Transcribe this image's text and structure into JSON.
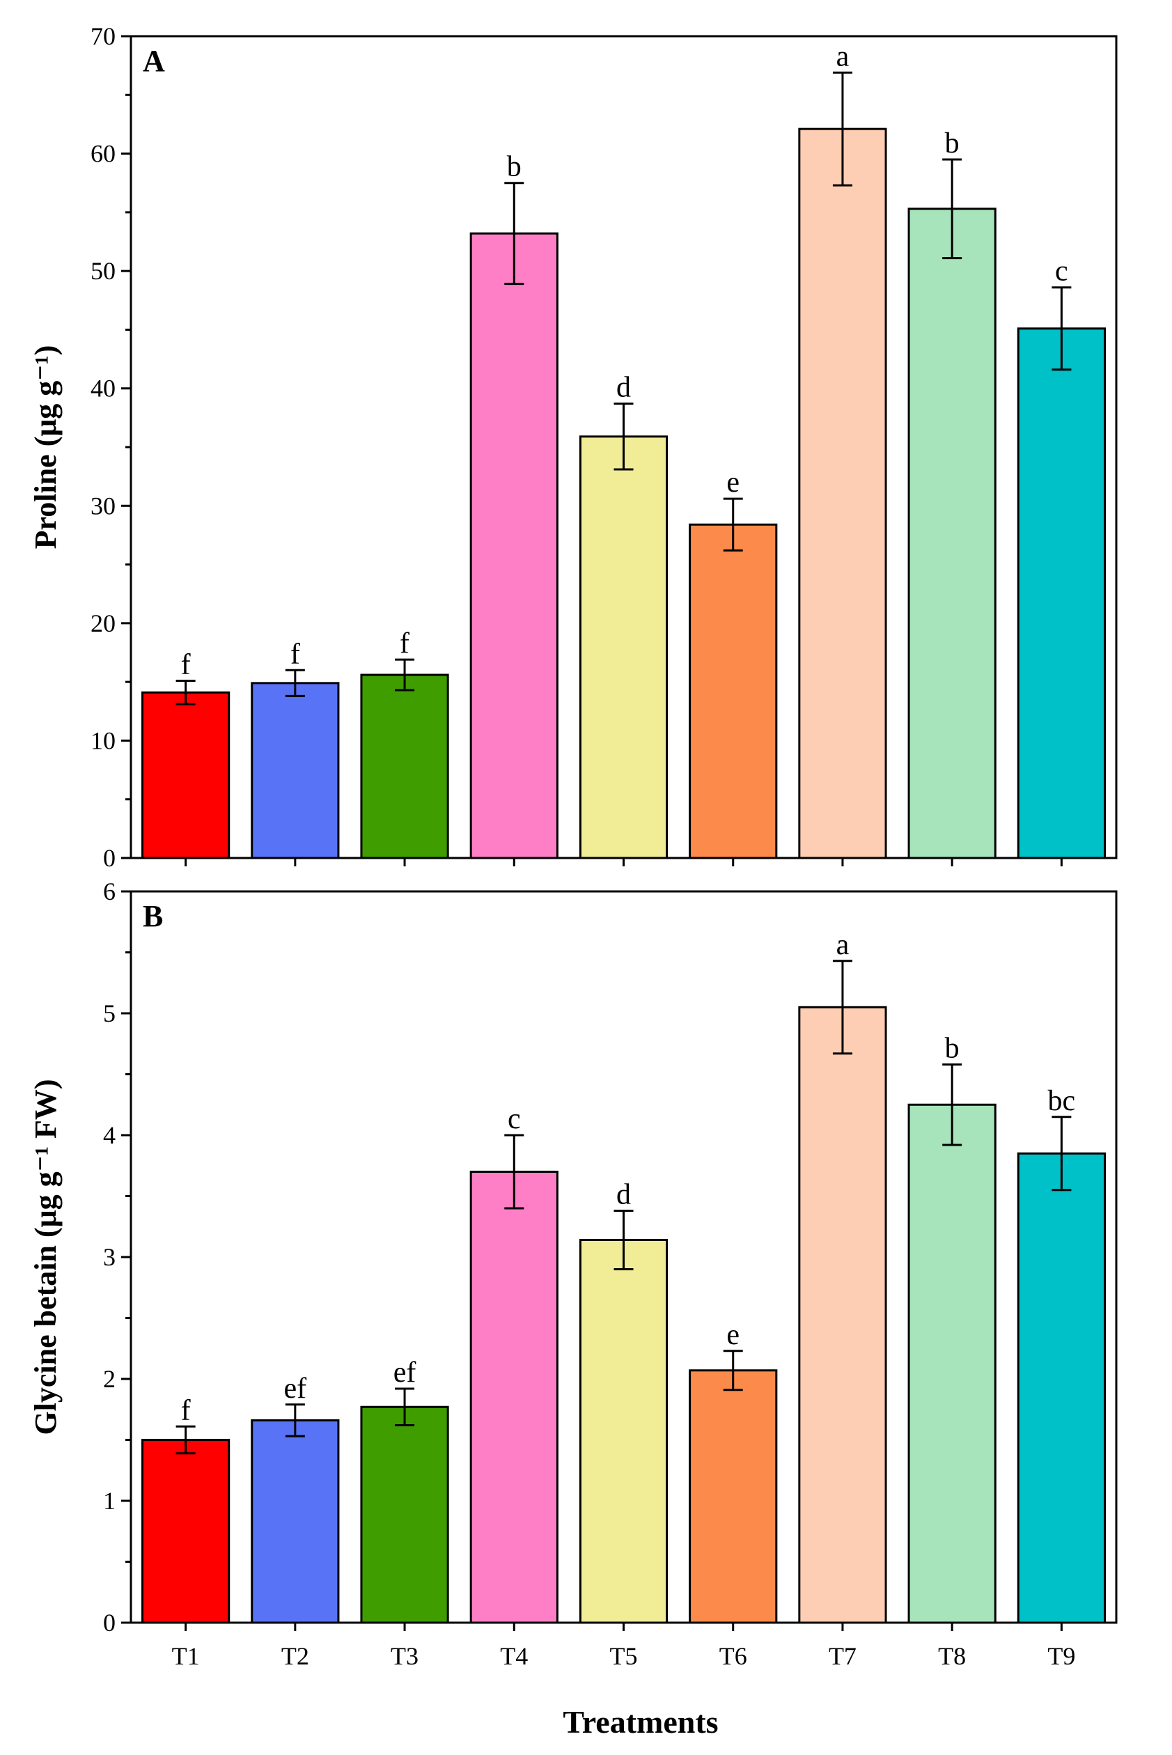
{
  "chart_data": [
    {
      "type": "bar",
      "panel": "A",
      "ylabel": "Proline (μg g⁻¹)",
      "ylim": [
        0,
        70
      ],
      "yticks": [
        0,
        10,
        20,
        30,
        40,
        50,
        60,
        70
      ],
      "categories": [
        "T1",
        "T2",
        "T3",
        "T4",
        "T5",
        "T6",
        "T7",
        "T8",
        "T9"
      ],
      "values": [
        14.1,
        14.9,
        15.6,
        53.2,
        35.9,
        28.4,
        62.1,
        55.3,
        45.1
      ],
      "errors": [
        1.0,
        1.1,
        1.3,
        4.3,
        2.8,
        2.2,
        4.8,
        4.2,
        3.5
      ],
      "letters": [
        "f",
        "f",
        "f",
        "b",
        "d",
        "e",
        "a",
        "b",
        "c"
      ],
      "colors": [
        "#fe0000",
        "#5873f5",
        "#3f9d00",
        "#fe7fc6",
        "#f1ec96",
        "#fc8b4b",
        "#fdceb3",
        "#a8e4bb",
        "#00c0c8"
      ]
    },
    {
      "type": "bar",
      "panel": "B",
      "ylabel": "Glycine betain (μg g⁻¹ FW)",
      "xlabel": "Treatments",
      "ylim": [
        0,
        6
      ],
      "yticks": [
        0,
        1,
        2,
        3,
        4,
        5,
        6
      ],
      "categories": [
        "T1",
        "T2",
        "T3",
        "T4",
        "T5",
        "T6",
        "T7",
        "T8",
        "T9"
      ],
      "values": [
        1.5,
        1.66,
        1.77,
        3.7,
        3.14,
        2.07,
        5.05,
        4.25,
        3.85
      ],
      "errors": [
        0.11,
        0.13,
        0.15,
        0.3,
        0.24,
        0.16,
        0.38,
        0.33,
        0.3
      ],
      "letters": [
        "f",
        "ef",
        "ef",
        "c",
        "d",
        "e",
        "a",
        "b",
        "bc"
      ],
      "colors": [
        "#fe0000",
        "#5873f5",
        "#3f9d00",
        "#fe7fc6",
        "#f1ec96",
        "#fc8b4b",
        "#fdceb3",
        "#a8e4bb",
        "#00c0c8"
      ]
    }
  ]
}
